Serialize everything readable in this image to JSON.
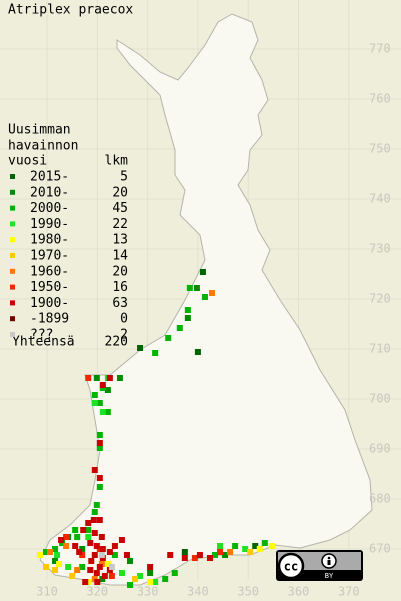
{
  "map": {
    "title": "Atriplex praecox",
    "legend_title": [
      "Uusimman",
      "havainnon",
      "vuosi"
    ],
    "count_header": "lkm",
    "total_label": "Yhteensä",
    "total": 220,
    "xticks": [
      310,
      320,
      330,
      340,
      350,
      360,
      370
    ],
    "yticks": [
      670,
      680,
      690,
      700,
      710,
      720,
      730,
      740,
      750,
      760,
      770
    ],
    "license": {
      "cc": "cc",
      "by": "BY"
    },
    "items": [
      {
        "label": "2015-",
        "count": 5,
        "color": "#006400",
        "squares": [
          [
            341.0,
            725.4
          ],
          [
            328.5,
            710.2
          ],
          [
            340.0,
            709.4
          ],
          [
            337.4,
            669.4
          ],
          [
            351.4,
            670.6
          ]
        ]
      },
      {
        "label": "2010-",
        "count": 20,
        "color": "#008c00",
        "squares": [
          [
            339.8,
            722.2
          ],
          [
            338.0,
            716.2
          ],
          [
            319.9,
            704.2
          ],
          [
            322.1,
            701.8
          ],
          [
            324.5,
            704.2
          ],
          [
            314.2,
            672.4
          ],
          [
            317.0,
            670.0
          ],
          [
            321.0,
            664.0
          ],
          [
            330.5,
            665.2
          ],
          [
            345.4,
            668.8
          ],
          [
            326.5,
            667.6
          ],
          [
            311.6,
            667.6
          ]
        ]
      },
      {
        "label": "2000-",
        "count": 45,
        "color": "#00b400",
        "squares": [
          [
            341.4,
            720.4
          ],
          [
            338.4,
            722.2
          ],
          [
            338.0,
            717.8
          ],
          [
            336.4,
            714.2
          ],
          [
            334.1,
            712.2
          ],
          [
            331.5,
            709.2
          ],
          [
            321.1,
            702.2
          ],
          [
            319.5,
            700.8
          ],
          [
            320.5,
            699.2
          ],
          [
            322.1,
            697.4
          ],
          [
            320.5,
            692.8
          ],
          [
            320.5,
            690.2
          ],
          [
            320.5,
            682.4
          ],
          [
            319.9,
            678.8
          ],
          [
            319.5,
            677.4
          ],
          [
            313.0,
            671.2
          ],
          [
            315.6,
            673.8
          ],
          [
            311.6,
            670.0
          ],
          [
            323.5,
            668.8
          ],
          [
            317.0,
            666.4
          ],
          [
            326.5,
            662.8
          ],
          [
            333.5,
            664.0
          ],
          [
            335.4,
            665.2
          ],
          [
            347.4,
            670.6
          ],
          [
            343.4,
            668.8
          ],
          [
            353.3,
            671.2
          ],
          [
            316.0,
            672.4
          ],
          [
            318.2,
            673.8
          ],
          [
            309.8,
            669.4
          ]
        ]
      },
      {
        "label": "1990-",
        "count": 22,
        "color": "#22e022",
        "squares": [
          [
            322.1,
            704.2
          ],
          [
            319.5,
            699.2
          ],
          [
            321.1,
            697.4
          ],
          [
            312.0,
            668.8
          ],
          [
            318.2,
            672.4
          ],
          [
            324.9,
            665.2
          ],
          [
            314.2,
            666.4
          ],
          [
            328.5,
            664.6
          ],
          [
            349.4,
            670.0
          ],
          [
            344.4,
            670.6
          ],
          [
            331.5,
            663.4
          ]
        ]
      },
      {
        "label": "1980-",
        "count": 13,
        "color": "#ffff00",
        "squares": [
          [
            308.6,
            668.8
          ],
          [
            318.2,
            663.4
          ],
          [
            322.1,
            667.0
          ],
          [
            352.3,
            670.0
          ],
          [
            354.7,
            670.6
          ],
          [
            330.5,
            663.4
          ],
          [
            312.4,
            667.0
          ]
        ]
      },
      {
        "label": "1970-",
        "count": 14,
        "color": "#ffc800",
        "squares": [
          [
            311.6,
            665.8
          ],
          [
            315.0,
            664.6
          ],
          [
            327.5,
            664.0
          ],
          [
            350.4,
            669.4
          ],
          [
            309.8,
            666.4
          ]
        ]
      },
      {
        "label": "1960-",
        "count": 20,
        "color": "#ff7800",
        "squares": [
          [
            342.8,
            721.2
          ],
          [
            310.6,
            669.4
          ],
          [
            313.8,
            670.6
          ],
          [
            319.5,
            664.0
          ],
          [
            346.4,
            669.4
          ],
          [
            320.9,
            667.0
          ],
          [
            316.0,
            665.8
          ]
        ]
      },
      {
        "label": "1950-",
        "count": 16,
        "color": "#f02800",
        "squares": [
          [
            318.2,
            704.2
          ],
          [
            313.8,
            672.4
          ],
          [
            320.5,
            670.0
          ],
          [
            322.9,
            664.6
          ],
          [
            339.4,
            668.2
          ],
          [
            317.0,
            668.8
          ],
          [
            344.4,
            669.4
          ]
        ]
      },
      {
        "label": "1900-",
        "count": 63,
        "color": "#c80000",
        "squares": [
          [
            322.5,
            704.2
          ],
          [
            321.1,
            702.8
          ],
          [
            320.5,
            691.2
          ],
          [
            319.5,
            685.8
          ],
          [
            320.5,
            684.2
          ],
          [
            319.3,
            675.8
          ],
          [
            320.5,
            675.8
          ],
          [
            318.2,
            675.2
          ],
          [
            317.2,
            673.8
          ],
          [
            319.5,
            673.2
          ],
          [
            320.9,
            672.4
          ],
          [
            318.6,
            671.2
          ],
          [
            319.9,
            670.6
          ],
          [
            321.1,
            670.0
          ],
          [
            322.5,
            669.4
          ],
          [
            319.5,
            668.8
          ],
          [
            321.1,
            668.2
          ],
          [
            318.8,
            667.6
          ],
          [
            320.5,
            666.4
          ],
          [
            318.6,
            665.8
          ],
          [
            319.9,
            665.2
          ],
          [
            321.5,
            664.6
          ],
          [
            317.6,
            663.4
          ],
          [
            323.5,
            670.6
          ],
          [
            324.9,
            671.8
          ],
          [
            315.6,
            670.6
          ],
          [
            312.8,
            671.8
          ],
          [
            316.4,
            669.4
          ],
          [
            340.4,
            668.8
          ],
          [
            342.4,
            668.2
          ],
          [
            337.4,
            668.2
          ],
          [
            334.5,
            668.8
          ],
          [
            330.5,
            666.4
          ],
          [
            325.9,
            668.8
          ],
          [
            320.0,
            663.4
          ],
          [
            322.5,
            665.8
          ]
        ]
      },
      {
        "label": "-1899",
        "count": 0,
        "color": "#780000",
        "squares": []
      },
      {
        "label": "???",
        "count": 2,
        "color": "#c8c8c8",
        "squares": [
          [
            322.9,
            666.4
          ],
          [
            320.9,
            668.8
          ]
        ]
      }
    ]
  }
}
